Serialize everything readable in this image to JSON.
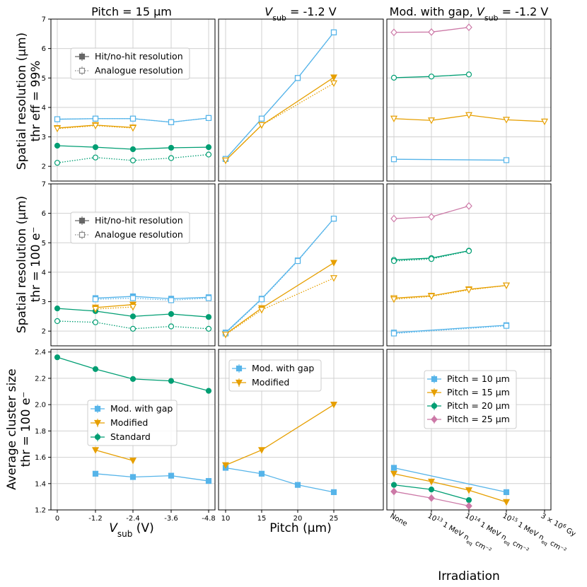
{
  "figure": {
    "col_titles": [
      "Pitch = 15 µm",
      "-1.2 V",
      "Mod. with gap, "
    ],
    "col_title_sub": "V",
    "col_title_sub_idx": "sub",
    "row_labels": [
      [
        "Spatial resolution (µm)",
        "thr eff = 99%"
      ],
      [
        "Spatial resolution (µm)",
        "thr = 100 e⁻"
      ],
      [
        "Average cluster size",
        "thr = 100 e⁻"
      ]
    ],
    "x_labels": [
      "V",
      "Pitch (µm)",
      "Irradiation"
    ],
    "x_label_v_suffix": " (V)",
    "v_eq_prefix": " = ",
    "legend_res": [
      "Hit/no-hit resolution",
      "Analogue resolution"
    ],
    "legend_cluster_vsub": [
      "Mod. with gap",
      "Modified",
      "Standard"
    ],
    "legend_cluster_pitch": [
      "Mod. with gap",
      "Modified"
    ],
    "legend_cluster_irr": [
      "Pitch = 10 µm",
      "Pitch = 15 µm",
      "Pitch = 20 µm",
      "Pitch = 25 µm"
    ],
    "vsub_ticks": [
      "0",
      "-1.2",
      "-2.4",
      "-3.6",
      "-4.8"
    ],
    "pitch_ticks": [
      "10",
      "15",
      "20",
      "25"
    ],
    "irr_ticks": [
      "None",
      "10",
      "10",
      "10",
      "3 × 10"
    ],
    "irr_tick_sup": [
      "",
      "13",
      "14",
      "15",
      "6"
    ],
    "irr_tick_unit": [
      "",
      " 1 MeV n",
      " 1 MeV n",
      " 1 MeV n",
      " Gy"
    ],
    "irr_tick_sub": [
      "",
      "eq",
      "eq",
      "eq",
      ""
    ],
    "irr_tick_tail": [
      "",
      " cm⁻²",
      " cm⁻²",
      " cm⁻²",
      ""
    ],
    "res_yticks": [
      "2",
      "3",
      "4",
      "5",
      "6",
      "7"
    ],
    "cl_yticks": [
      "1.2",
      "1.4",
      "1.6",
      "1.8",
      "2.0",
      "2.2",
      "2.4"
    ]
  },
  "colors": {
    "blue": "#56b4e9",
    "orange": "#e69f00",
    "green": "#009e73",
    "pink": "#cc79a7",
    "grid": "#d0d0d0"
  },
  "chart_data": [
    {
      "type": "line",
      "panel": "row1-col1",
      "ylim": [
        1.5,
        7
      ],
      "x": [
        "0",
        "-1.2",
        "-2.4",
        "-3.6",
        "-4.8"
      ],
      "series": [
        {
          "color": "blue",
          "marker": "square",
          "style": "solid",
          "values": [
            3.6,
            3.62,
            3.62,
            3.5,
            3.64
          ]
        },
        {
          "color": "orange",
          "marker": "tri",
          "style": "solid",
          "values": [
            3.3,
            3.4,
            3.32,
            null,
            null
          ]
        },
        {
          "color": "green",
          "marker": "circle",
          "style": "solid",
          "values": [
            2.7,
            2.65,
            2.58,
            2.63,
            2.65
          ]
        },
        {
          "color": "blue",
          "marker": "square",
          "style": "dotted",
          "open": true,
          "values": [
            3.6,
            3.62,
            3.62,
            3.5,
            3.64
          ]
        },
        {
          "color": "orange",
          "marker": "tri",
          "style": "dotted",
          "open": true,
          "values": [
            3.28,
            3.38,
            3.3,
            null,
            null
          ]
        },
        {
          "color": "green",
          "marker": "circle",
          "style": "dotted",
          "open": true,
          "values": [
            2.12,
            2.3,
            2.2,
            2.28,
            2.4
          ]
        }
      ]
    },
    {
      "type": "line",
      "panel": "row1-col2",
      "ylim": [
        1.5,
        7
      ],
      "x": [
        10,
        15,
        20,
        25
      ],
      "series": [
        {
          "color": "blue",
          "marker": "square",
          "style": "solid",
          "values": [
            2.25,
            3.62,
            5.0,
            6.55
          ]
        },
        {
          "color": "orange",
          "marker": "tri",
          "style": "solid",
          "values": [
            2.2,
            3.4,
            null,
            5.02
          ]
        },
        {
          "color": "blue",
          "marker": "square",
          "style": "dotted",
          "open": true,
          "values": [
            2.25,
            3.62,
            5.0,
            6.55
          ]
        },
        {
          "color": "orange",
          "marker": "tri",
          "style": "dotted",
          "open": true,
          "values": [
            2.2,
            3.4,
            null,
            4.82
          ]
        }
      ]
    },
    {
      "type": "line",
      "panel": "row1-col3",
      "ylim": [
        1.5,
        7
      ],
      "x": [
        "None",
        "1e13",
        "1e14",
        "1e15",
        "3e6 Gy"
      ],
      "series": [
        {
          "color": "pink",
          "marker": "diamond",
          "style": "solid",
          "open": true,
          "values": [
            6.55,
            6.56,
            6.72,
            null,
            null
          ]
        },
        {
          "color": "green",
          "marker": "circle",
          "style": "solid",
          "open": true,
          "values": [
            5.01,
            5.05,
            5.12,
            null,
            null
          ]
        },
        {
          "color": "orange",
          "marker": "tri",
          "style": "solid",
          "open": true,
          "values": [
            3.62,
            3.56,
            3.74,
            3.58,
            3.52
          ]
        },
        {
          "color": "blue",
          "marker": "square",
          "style": "solid",
          "open": true,
          "values": [
            2.24,
            null,
            null,
            2.21,
            null
          ]
        }
      ]
    },
    {
      "type": "line",
      "panel": "row2-col1",
      "ylim": [
        1.5,
        7
      ],
      "x": [
        "0",
        "-1.2",
        "-2.4",
        "-3.6",
        "-4.8"
      ],
      "series": [
        {
          "color": "blue",
          "marker": "square",
          "style": "solid",
          "values": [
            null,
            3.12,
            3.18,
            3.1,
            3.15
          ]
        },
        {
          "color": "orange",
          "marker": "tri",
          "style": "solid",
          "values": [
            null,
            2.8,
            2.9,
            null,
            null
          ]
        },
        {
          "color": "green",
          "marker": "circle",
          "style": "solid",
          "values": [
            2.77,
            2.68,
            2.5,
            2.58,
            2.48
          ]
        },
        {
          "color": "blue",
          "marker": "square",
          "style": "dotted",
          "open": true,
          "values": [
            null,
            3.08,
            3.12,
            3.05,
            3.12
          ]
        },
        {
          "color": "orange",
          "marker": "tri",
          "style": "dotted",
          "open": true,
          "values": [
            null,
            2.75,
            2.82,
            null,
            null
          ]
        },
        {
          "color": "green",
          "marker": "circle",
          "style": "dotted",
          "open": true,
          "values": [
            2.34,
            2.3,
            2.08,
            2.16,
            2.08
          ]
        }
      ]
    },
    {
      "type": "line",
      "panel": "row2-col2",
      "ylim": [
        1.5,
        7
      ],
      "x": [
        10,
        15,
        20,
        25
      ],
      "series": [
        {
          "color": "blue",
          "marker": "square",
          "style": "solid",
          "values": [
            1.95,
            3.1,
            4.4,
            5.82
          ]
        },
        {
          "color": "orange",
          "marker": "tri",
          "style": "solid",
          "values": [
            1.9,
            2.78,
            null,
            4.32
          ]
        },
        {
          "color": "blue",
          "marker": "square",
          "style": "dotted",
          "open": true,
          "values": [
            1.92,
            3.08,
            4.38,
            5.82
          ]
        },
        {
          "color": "orange",
          "marker": "tri",
          "style": "dotted",
          "open": true,
          "values": [
            1.88,
            2.72,
            null,
            3.8
          ]
        }
      ]
    },
    {
      "type": "line",
      "panel": "row2-col3",
      "ylim": [
        1.5,
        7
      ],
      "x": [
        "None",
        "1e13",
        "1e14",
        "1e15",
        "3e6 Gy"
      ],
      "series": [
        {
          "color": "pink",
          "marker": "diamond",
          "style": "solid",
          "open": true,
          "values": [
            5.82,
            5.88,
            6.25,
            null,
            null
          ]
        },
        {
          "color": "green",
          "marker": "circle",
          "style": "solid",
          "open": true,
          "values": [
            4.42,
            4.48,
            4.73,
            null,
            null
          ]
        },
        {
          "color": "orange",
          "marker": "tri",
          "style": "solid",
          "open": true,
          "values": [
            3.12,
            3.2,
            3.42,
            3.55,
            null
          ]
        },
        {
          "color": "blue",
          "marker": "square",
          "style": "solid",
          "open": true,
          "values": [
            1.95,
            null,
            null,
            2.2,
            null
          ]
        },
        {
          "color": "green",
          "marker": "circle",
          "style": "dotted",
          "open": true,
          "values": [
            4.38,
            4.45,
            4.72,
            null,
            null
          ]
        },
        {
          "color": "orange",
          "marker": "tri",
          "style": "dotted",
          "open": true,
          "values": [
            3.08,
            3.18,
            3.4,
            3.55,
            null
          ]
        },
        {
          "color": "blue",
          "marker": "square",
          "style": "dotted",
          "open": true,
          "values": [
            1.92,
            null,
            null,
            2.18,
            null
          ]
        }
      ]
    },
    {
      "type": "line",
      "panel": "row3-col1",
      "ylim": [
        1.2,
        2.42
      ],
      "x": [
        "0",
        "-1.2",
        "-2.4",
        "-3.6",
        "-4.8"
      ],
      "series": [
        {
          "name": "Mod. with gap",
          "color": "blue",
          "marker": "square",
          "style": "solid",
          "values": [
            null,
            1.475,
            1.45,
            1.46,
            1.42
          ]
        },
        {
          "name": "Modified",
          "color": "orange",
          "marker": "tri",
          "style": "solid",
          "values": [
            null,
            1.655,
            1.575,
            null,
            null
          ]
        },
        {
          "name": "Standard",
          "color": "green",
          "marker": "circle",
          "style": "solid",
          "values": [
            2.36,
            2.27,
            2.195,
            2.18,
            2.105
          ]
        }
      ]
    },
    {
      "type": "line",
      "panel": "row3-col2",
      "ylim": [
        1.2,
        2.42
      ],
      "x": [
        10,
        15,
        20,
        25
      ],
      "series": [
        {
          "name": "Mod. with gap",
          "color": "blue",
          "marker": "square",
          "style": "solid",
          "values": [
            1.52,
            1.475,
            1.39,
            1.335
          ]
        },
        {
          "name": "Modified",
          "color": "orange",
          "marker": "tri",
          "style": "solid",
          "values": [
            1.54,
            1.655,
            null,
            2.0
          ]
        }
      ]
    },
    {
      "type": "line",
      "panel": "row3-col3",
      "ylim": [
        1.2,
        2.42
      ],
      "x": [
        "None",
        "1e13",
        "1e14",
        "1e15",
        "3e6 Gy"
      ],
      "series": [
        {
          "name": "Pitch = 10 µm",
          "color": "blue",
          "marker": "square",
          "style": "solid",
          "values": [
            1.52,
            null,
            null,
            1.335,
            null
          ]
        },
        {
          "name": "Pitch = 15 µm",
          "color": "orange",
          "marker": "tri",
          "style": "solid",
          "values": [
            1.475,
            1.415,
            1.35,
            1.26,
            null
          ]
        },
        {
          "name": "Pitch = 20 µm",
          "color": "green",
          "marker": "circle",
          "style": "solid",
          "values": [
            1.39,
            1.355,
            1.275,
            null,
            null
          ]
        },
        {
          "name": "Pitch = 25 µm",
          "color": "pink",
          "marker": "diamond",
          "style": "solid",
          "values": [
            1.34,
            1.29,
            1.23,
            null,
            null
          ]
        }
      ]
    }
  ]
}
